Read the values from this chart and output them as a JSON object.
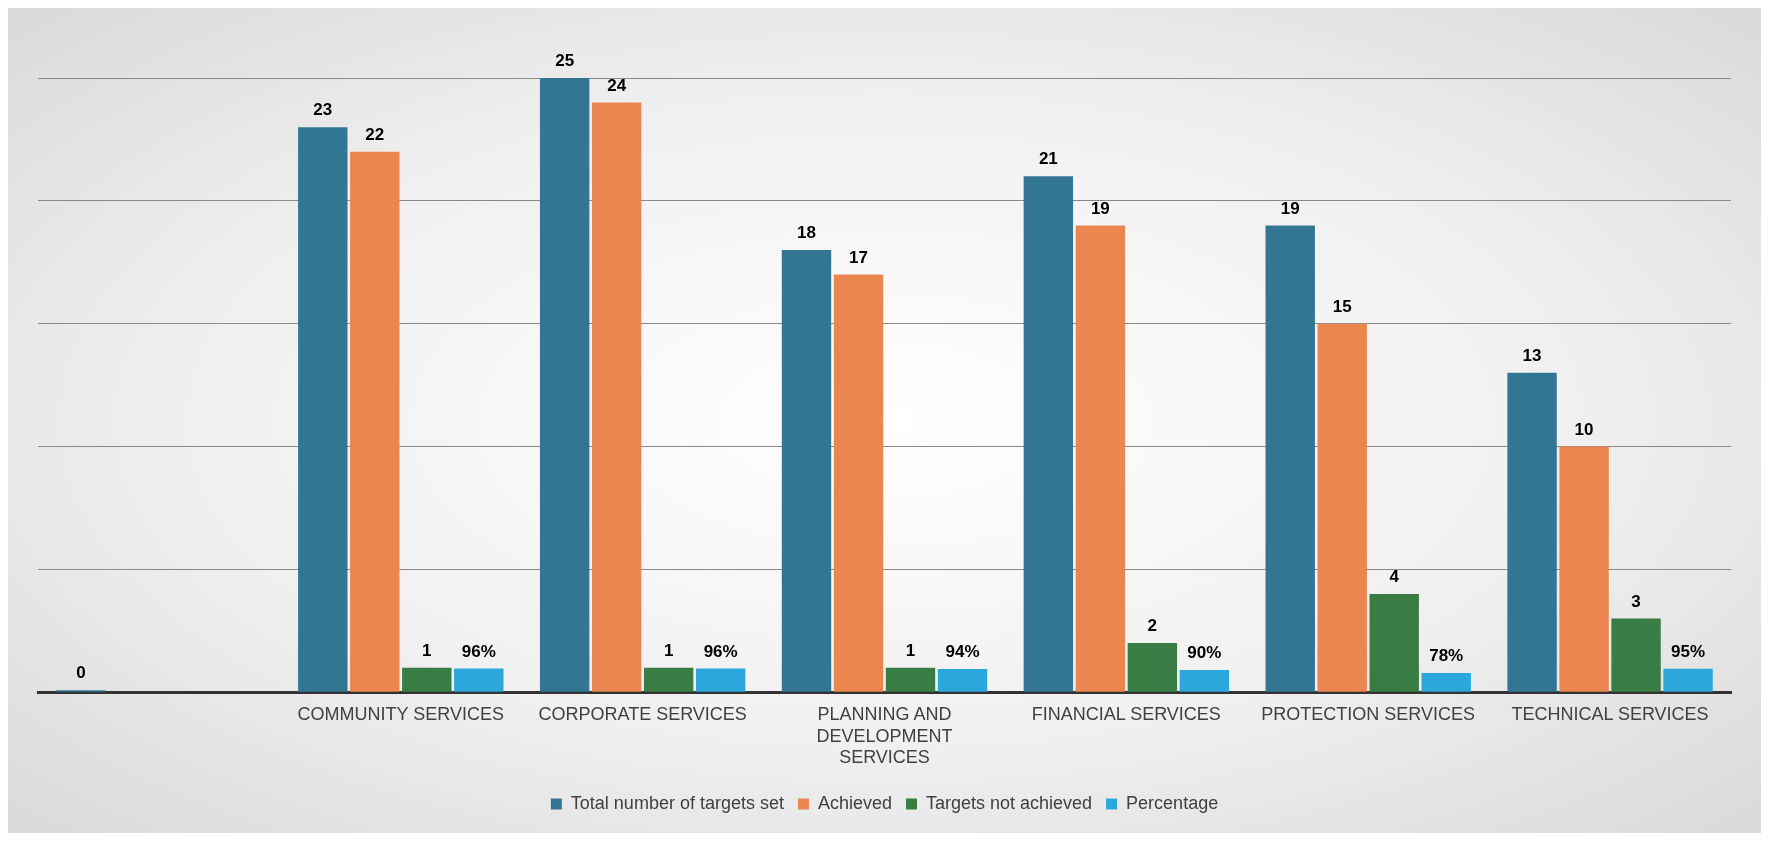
{
  "chart_data": {
    "type": "bar",
    "categories": [
      null,
      "COMMUNITY SERVICES",
      "CORPORATE SERVICES",
      "PLANNING AND DEVELOPMENT SERVICES",
      "FINANCIAL SERVICES",
      "PROTECTION SERVICES",
      "TECHNICAL SERVICES"
    ],
    "series": [
      {
        "name": "Total number of targets set",
        "color": "#327694",
        "values": [
          0,
          23,
          25,
          18,
          21,
          19,
          13
        ],
        "value_labels": [
          "0",
          "23",
          "25",
          "18",
          "21",
          "19",
          "13"
        ]
      },
      {
        "name": "Achieved",
        "color": "#eb8651",
        "values": [
          null,
          22,
          24,
          17,
          19,
          15,
          10
        ],
        "value_labels": [
          null,
          "22",
          "24",
          "17",
          "19",
          "15",
          "10"
        ]
      },
      {
        "name": "Targets not achieved",
        "color": "#3a7d44",
        "values": [
          null,
          1,
          1,
          1,
          2,
          4,
          3
        ],
        "value_labels": [
          null,
          "1",
          "1",
          "1",
          "2",
          "4",
          "3"
        ]
      },
      {
        "name": "Percentage",
        "color": "#2ba7dc",
        "values": [
          null,
          0.96,
          0.96,
          0.94,
          0.9,
          0.78,
          0.95
        ],
        "value_labels": [
          null,
          "96%",
          "96%",
          "94%",
          "90%",
          "78%",
          "95%"
        ]
      }
    ],
    "ylim": [
      0,
      25
    ],
    "yticks": [
      0,
      5,
      10,
      15,
      20,
      25
    ],
    "grid": "y",
    "tick_labels": "x",
    "legend": "bottom"
  }
}
